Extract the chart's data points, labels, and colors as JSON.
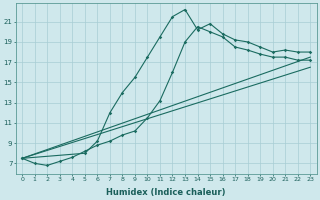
{
  "xlabel": "Humidex (Indice chaleur)",
  "xlim": [
    -0.5,
    23.5
  ],
  "ylim": [
    6.0,
    22.8
  ],
  "xticks": [
    0,
    1,
    2,
    3,
    4,
    5,
    6,
    7,
    8,
    9,
    10,
    11,
    12,
    13,
    14,
    15,
    16,
    17,
    18,
    19,
    20,
    21,
    22,
    23
  ],
  "yticks": [
    7,
    9,
    11,
    13,
    15,
    17,
    19,
    21
  ],
  "bg_color": "#cfe8ec",
  "grid_color": "#a8cdd4",
  "line_color": "#1a6b60",
  "line1_x": [
    0,
    1,
    2,
    3,
    4,
    5,
    6,
    7,
    8,
    9,
    10,
    11,
    12,
    13,
    14,
    15,
    16,
    17,
    18,
    19,
    20,
    21,
    22,
    23
  ],
  "line1_y": [
    7.5,
    7.0,
    6.8,
    7.2,
    7.6,
    8.2,
    8.8,
    9.2,
    9.8,
    10.2,
    11.5,
    13.2,
    16.0,
    19.0,
    20.5,
    20.0,
    19.5,
    18.5,
    18.2,
    17.8,
    17.5,
    17.5,
    17.2,
    17.2
  ],
  "line2_x": [
    0,
    5,
    6,
    7,
    8,
    9,
    10,
    11,
    12,
    13,
    14,
    15,
    16,
    17,
    18,
    19,
    20,
    21,
    22,
    23
  ],
  "line2_y": [
    7.5,
    8.0,
    9.2,
    12.0,
    14.0,
    15.5,
    17.5,
    19.5,
    21.5,
    22.2,
    20.2,
    20.8,
    19.8,
    19.2,
    19.0,
    18.5,
    18.0,
    18.2,
    18.0,
    18.0
  ],
  "line3_x": [
    0,
    23
  ],
  "line3_y": [
    7.5,
    16.5
  ],
  "line4_x": [
    0,
    23
  ],
  "line4_y": [
    7.5,
    17.5
  ]
}
